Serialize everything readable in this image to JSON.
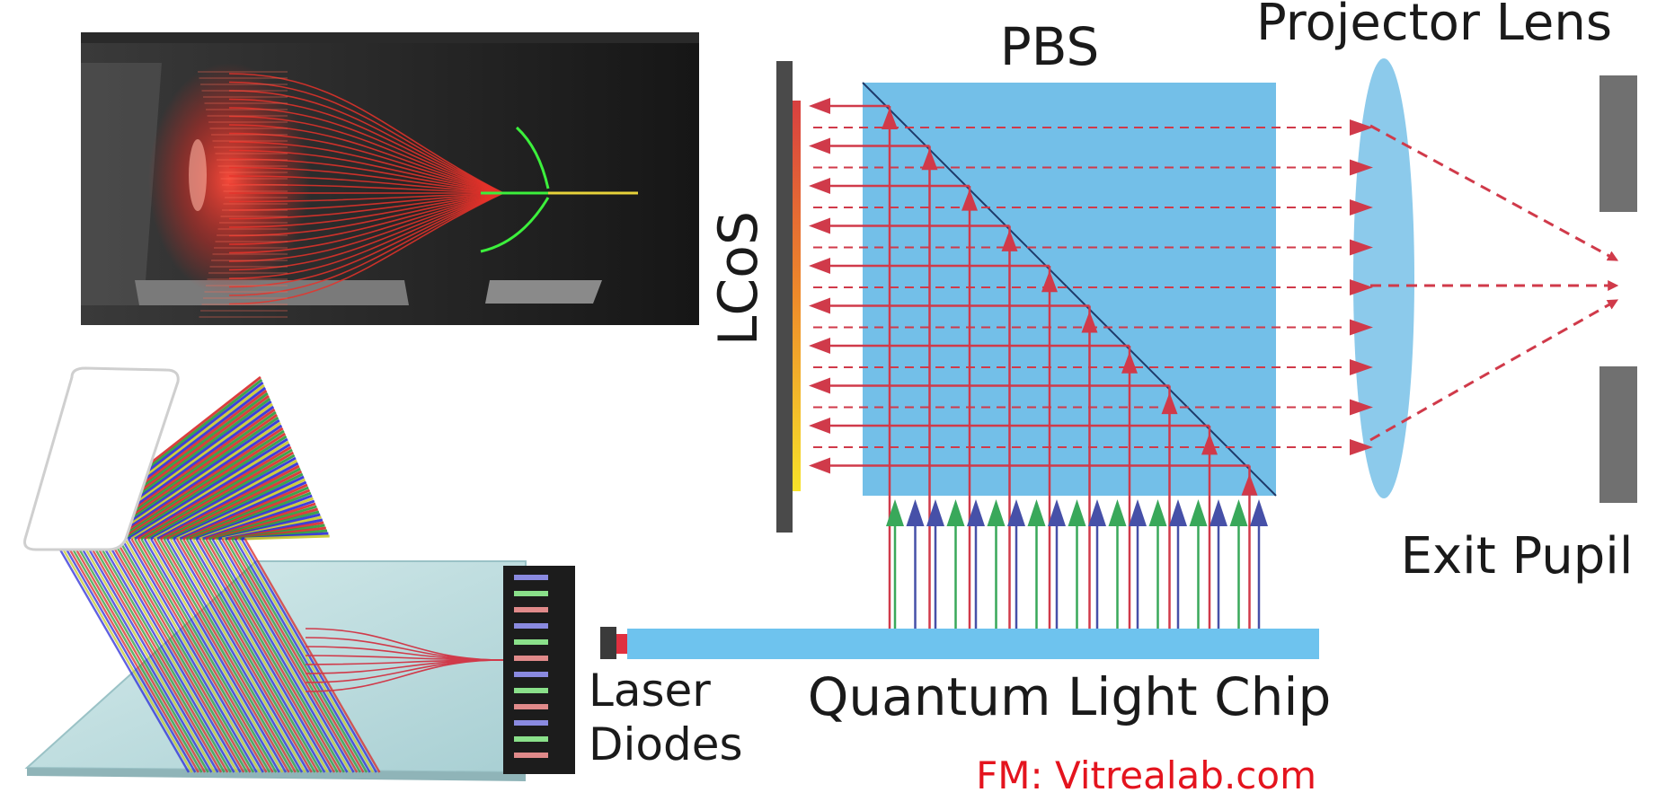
{
  "labels": {
    "pbs": "PBS",
    "projector_lens": "Projector Lens",
    "lcos": "LCoS",
    "exit_pupil": "Exit Pupil",
    "laser_line1": "Laser",
    "laser_line2": "Diodes",
    "chip": "Quantum Light Chip",
    "credit": "FM: Vitrealab.com"
  },
  "colors": {
    "pbs_fill": "#73bfe8",
    "lens_fill": "#8ccaeb",
    "red_ray": "#d03a4a",
    "green_ray": "#39a85a",
    "blue_ray": "#4650a8",
    "chip_fill": "#6ec3ee",
    "credit": "#e4141e",
    "label": "#1a1a1a",
    "stop_gray": "#707070"
  },
  "beams": {
    "count": 19,
    "pattern": [
      "green",
      "blue",
      "blue",
      "green",
      "blue",
      "green",
      "blue",
      "green",
      "blue",
      "green",
      "blue",
      "green",
      "blue",
      "green",
      "blue",
      "green",
      "blue",
      "green",
      "blue"
    ]
  }
}
